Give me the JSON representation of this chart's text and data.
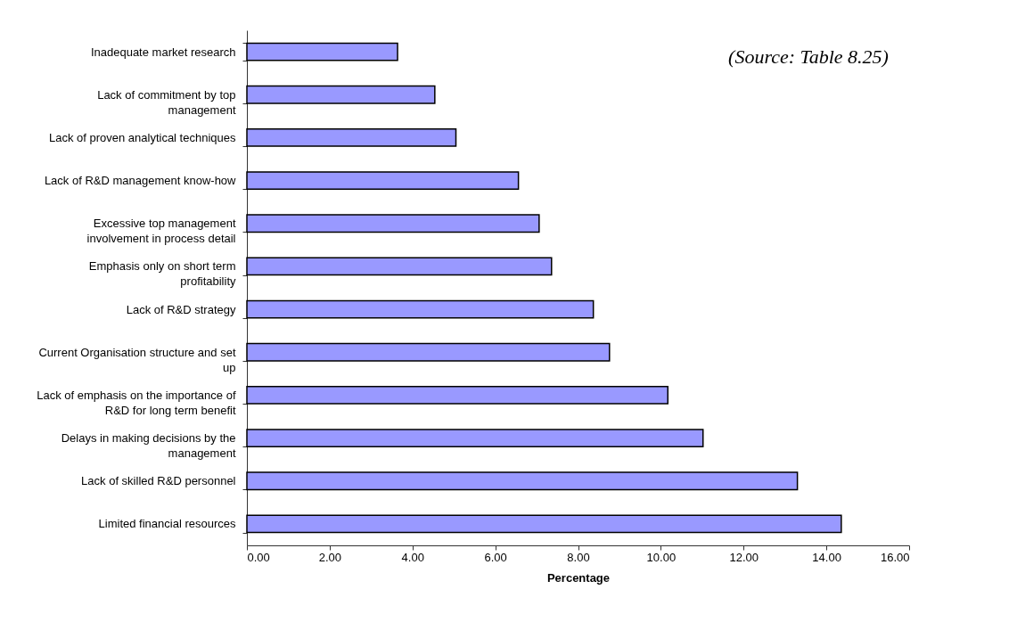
{
  "chart_data": {
    "type": "bar",
    "orientation": "horizontal",
    "xlabel": "Percentage",
    "categories": [
      "Inadequate market research",
      "Lack of commitment by top\nmanagement",
      "Lack of proven analytical techniques",
      "Lack of R&D management know-how",
      "Excessive top management\ninvolvement in process detail",
      "Emphasis only on short term\nprofitability",
      "Lack of R&D strategy",
      "Current Organisation structure and set\nup",
      "Lack of emphasis on the importance of\nR&D for long term benefit",
      "Delays in making decisions by the\nmanagement",
      "Lack of skilled R&D personnel",
      "Limited financial resources"
    ],
    "values": [
      3.64,
      4.54,
      5.05,
      6.56,
      7.06,
      7.36,
      8.37,
      8.76,
      10.17,
      11.02,
      13.3,
      14.36
    ],
    "color": "#9999ff",
    "xlim": [
      0,
      16
    ],
    "xticks": [
      {
        "value": 0,
        "label": "0.00"
      },
      {
        "value": 2,
        "label": "2.00"
      },
      {
        "value": 4,
        "label": "4.00"
      },
      {
        "value": 6,
        "label": "6.00"
      },
      {
        "value": 8,
        "label": "8.00"
      },
      {
        "value": 10,
        "label": "10.00"
      },
      {
        "value": 12,
        "label": "12.00"
      },
      {
        "value": 14,
        "label": "14.00"
      },
      {
        "value": 16,
        "label": "16.00"
      }
    ],
    "annotations": [
      "(Source: Table 8.25)"
    ],
    "grid": false
  }
}
